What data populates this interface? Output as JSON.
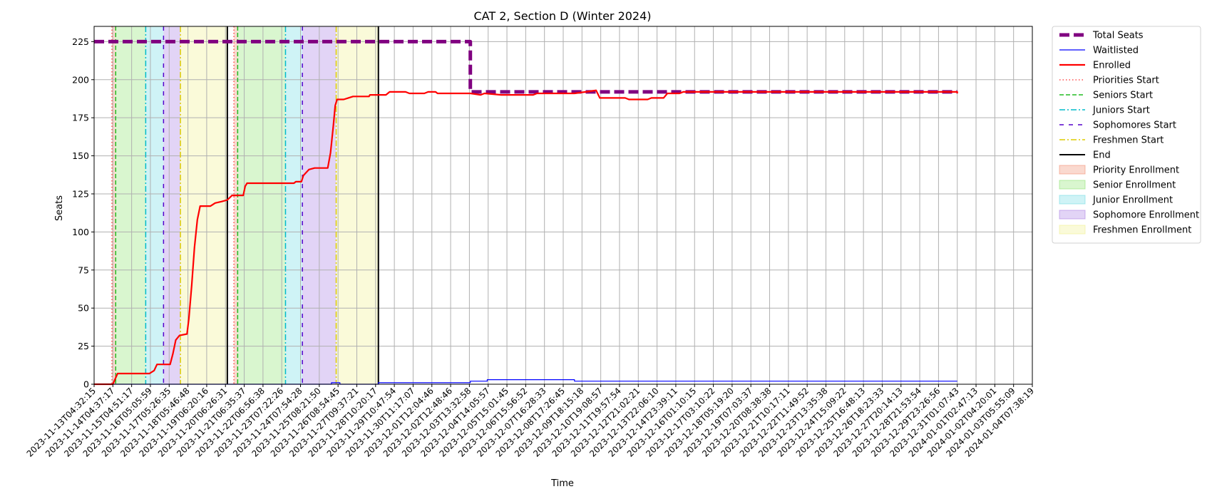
{
  "chart_data": {
    "type": "line",
    "title": "CAT 2, Section D (Winter 2024)",
    "xlabel": "Time",
    "ylabel": "Seats",
    "ylim": [
      0,
      235
    ],
    "yticks": [
      0,
      25,
      50,
      75,
      100,
      125,
      150,
      175,
      200,
      225
    ],
    "grid": true,
    "legend_position": "outside-top-right",
    "x_ticks": [
      "2023-11-13T04:32:15",
      "2023-11-14T04:37:17",
      "2023-11-15T04:51:17",
      "2023-11-16T05:05:59",
      "2023-11-17T05:26:35",
      "2023-11-18T05:46:48",
      "2023-11-19T06:20:16",
      "2023-11-20T06:26:31",
      "2023-11-21T06:35:37",
      "2023-11-22T06:56:38",
      "2023-11-23T07:22:26",
      "2023-11-24T07:54:28",
      "2023-11-25T08:21:50",
      "2023-11-26T08:54:45",
      "2023-11-27T09:37:21",
      "2023-11-28T10:20:17",
      "2023-11-29T10:47:54",
      "2023-11-30T11:17:07",
      "2023-12-01T12:04:46",
      "2023-12-02T12:48:46",
      "2023-12-03T13:32:58",
      "2023-12-04T14:05:57",
      "2023-12-05T15:01:45",
      "2023-12-06T15:56:52",
      "2023-12-07T16:28:33",
      "2023-12-08T17:26:45",
      "2023-12-09T18:15:18",
      "2023-12-10T19:08:57",
      "2023-12-11T19:57:54",
      "2023-12-12T21:02:21",
      "2023-12-13T22:06:10",
      "2023-12-14T23:39:11",
      "2023-12-16T01:10:15",
      "2023-12-17T03:10:22",
      "2023-12-18T05:19:20",
      "2023-12-19T07:03:37",
      "2023-12-20T08:38:38",
      "2023-12-21T10:17:11",
      "2023-12-22T11:49:52",
      "2023-12-23T13:35:38",
      "2023-12-24T15:09:22",
      "2023-12-25T16:48:13",
      "2023-12-26T18:23:33",
      "2023-12-27T20:14:13",
      "2023-12-28T21:53:54",
      "2023-12-29T23:26:56",
      "2023-12-31T01:07:43",
      "2024-01-01T02:47:13",
      "2024-01-02T04:20:01",
      "2024-01-03T05:55:09",
      "2024-01-04T07:38:19"
    ],
    "series": [
      {
        "name": "Total Seats",
        "color": "#800080",
        "style": "dashed-thick",
        "points": [
          [
            0,
            225
          ],
          [
            20.05,
            225
          ],
          [
            20.05,
            192
          ],
          [
            46,
            192
          ]
        ]
      },
      {
        "name": "Waitlisted",
        "color": "#0000ff",
        "style": "solid-thin",
        "points": [
          [
            0,
            0
          ],
          [
            12.65,
            0
          ],
          [
            12.65,
            1
          ],
          [
            13.1,
            1
          ],
          [
            13.1,
            0
          ],
          [
            15.15,
            0
          ],
          [
            15.15,
            1
          ],
          [
            20.05,
            1
          ],
          [
            20.05,
            2
          ],
          [
            20.95,
            2
          ],
          [
            20.95,
            3
          ],
          [
            25.6,
            3
          ],
          [
            25.6,
            2
          ],
          [
            46,
            2
          ]
        ]
      },
      {
        "name": "Enrolled",
        "color": "#ff0000",
        "style": "solid-thick",
        "points": [
          [
            0,
            0
          ],
          [
            1,
            0
          ],
          [
            1.25,
            7
          ],
          [
            2.5,
            7
          ],
          [
            2.95,
            7
          ],
          [
            3.2,
            9
          ],
          [
            3.35,
            13
          ],
          [
            4.05,
            13
          ],
          [
            4.2,
            20
          ],
          [
            4.35,
            29
          ],
          [
            4.55,
            32
          ],
          [
            4.95,
            33
          ],
          [
            5.05,
            43
          ],
          [
            5.2,
            65
          ],
          [
            5.35,
            90
          ],
          [
            5.5,
            108
          ],
          [
            5.65,
            117
          ],
          [
            6.2,
            117
          ],
          [
            6.45,
            119
          ],
          [
            6.8,
            120
          ],
          [
            7.1,
            121
          ],
          [
            7.35,
            124
          ],
          [
            7.95,
            124
          ],
          [
            8.05,
            130
          ],
          [
            8.15,
            132
          ],
          [
            10.65,
            132
          ],
          [
            10.75,
            133
          ],
          [
            11.05,
            133
          ],
          [
            11.15,
            137
          ],
          [
            11.45,
            141
          ],
          [
            11.75,
            142
          ],
          [
            12.45,
            142
          ],
          [
            12.6,
            152
          ],
          [
            12.75,
            170
          ],
          [
            12.85,
            183
          ],
          [
            12.95,
            187
          ],
          [
            13.3,
            187
          ],
          [
            13.55,
            188
          ],
          [
            13.8,
            189
          ],
          [
            14.65,
            189
          ],
          [
            14.7,
            190
          ],
          [
            15.25,
            190
          ],
          [
            15.55,
            190
          ],
          [
            15.75,
            192
          ],
          [
            16.6,
            192
          ],
          [
            16.8,
            191
          ],
          [
            17.6,
            191
          ],
          [
            17.8,
            192
          ],
          [
            18.2,
            192
          ],
          [
            18.3,
            191
          ],
          [
            20.05,
            191
          ],
          [
            20.6,
            190
          ],
          [
            20.8,
            191
          ],
          [
            21.7,
            190
          ],
          [
            23.4,
            190
          ],
          [
            23.6,
            191
          ],
          [
            25.6,
            191
          ],
          [
            26.2,
            192
          ],
          [
            26.75,
            193
          ],
          [
            26.95,
            188
          ],
          [
            28.3,
            188
          ],
          [
            28.5,
            187
          ],
          [
            29.5,
            187
          ],
          [
            29.7,
            188
          ],
          [
            30.35,
            188
          ],
          [
            30.55,
            191
          ],
          [
            31.2,
            191
          ],
          [
            31.4,
            192
          ],
          [
            46,
            192
          ],
          [
            46,
            191
          ]
        ]
      }
    ],
    "markers": [
      {
        "name": "Priorities Start",
        "color": "#ff4d4d",
        "style": "dotted",
        "x": [
          0.95,
          7.45
        ]
      },
      {
        "name": "Seniors Start",
        "color": "#22bb22",
        "style": "dashed",
        "x": [
          1.15,
          7.65
        ]
      },
      {
        "name": "Juniors Start",
        "color": "#00bbcc",
        "style": "dashdot",
        "x": [
          2.75,
          10.2
        ]
      },
      {
        "name": "Sophomores Start",
        "color": "#5500cc",
        "style": "loose-dash",
        "x": [
          3.7,
          11.1
        ]
      },
      {
        "name": "Freshmen Start",
        "color": "#ddcc00",
        "style": "dashdot",
        "x": [
          4.6,
          12.9
        ]
      },
      {
        "name": "End",
        "color": "#000000",
        "style": "solid",
        "x": [
          7.1,
          15.15
        ]
      }
    ],
    "spans": [
      {
        "name": "Priority Enrollment",
        "color": "#f08060",
        "ranges": [
          [
            0.95,
            1.15
          ],
          [
            7.45,
            7.65
          ]
        ]
      },
      {
        "name": "Senior Enrollment",
        "color": "#80e060",
        "ranges": [
          [
            1.15,
            2.75
          ],
          [
            7.65,
            10.2
          ]
        ]
      },
      {
        "name": "Junior Enrollment",
        "color": "#60d8e0",
        "ranges": [
          [
            2.75,
            3.7
          ],
          [
            10.2,
            11.1
          ]
        ]
      },
      {
        "name": "Sophomore Enrollment",
        "color": "#a070e0",
        "ranges": [
          [
            3.7,
            4.6
          ],
          [
            11.1,
            12.9
          ]
        ]
      },
      {
        "name": "Freshmen Enrollment",
        "color": "#eeee80",
        "ranges": [
          [
            4.6,
            7.1
          ],
          [
            12.9,
            15.15
          ]
        ]
      }
    ],
    "legend": [
      {
        "label": "Total Seats",
        "kind": "line",
        "color": "#800080",
        "style": "dashed-thick"
      },
      {
        "label": "Waitlisted",
        "kind": "line",
        "color": "#0000ff",
        "style": "solid-thin"
      },
      {
        "label": "Enrolled",
        "kind": "line",
        "color": "#ff0000",
        "style": "solid-thick"
      },
      {
        "label": "Priorities Start",
        "kind": "line",
        "color": "#ff4d4d",
        "style": "dotted"
      },
      {
        "label": "Seniors Start",
        "kind": "line",
        "color": "#22bb22",
        "style": "dashed"
      },
      {
        "label": "Juniors Start",
        "kind": "line",
        "color": "#00bbcc",
        "style": "dashdot"
      },
      {
        "label": "Sophomores Start",
        "kind": "line",
        "color": "#5500cc",
        "style": "loose-dash"
      },
      {
        "label": "Freshmen Start",
        "kind": "line",
        "color": "#ddcc00",
        "style": "dashdot"
      },
      {
        "label": "End",
        "kind": "line",
        "color": "#000000",
        "style": "solid"
      },
      {
        "label": "Priority Enrollment",
        "kind": "patch",
        "color": "#f08060"
      },
      {
        "label": "Senior Enrollment",
        "kind": "patch",
        "color": "#80e060"
      },
      {
        "label": "Junior Enrollment",
        "kind": "patch",
        "color": "#60d8e0"
      },
      {
        "label": "Sophomore Enrollment",
        "kind": "patch",
        "color": "#a070e0"
      },
      {
        "label": "Freshmen Enrollment",
        "kind": "patch",
        "color": "#eeee80"
      }
    ]
  }
}
